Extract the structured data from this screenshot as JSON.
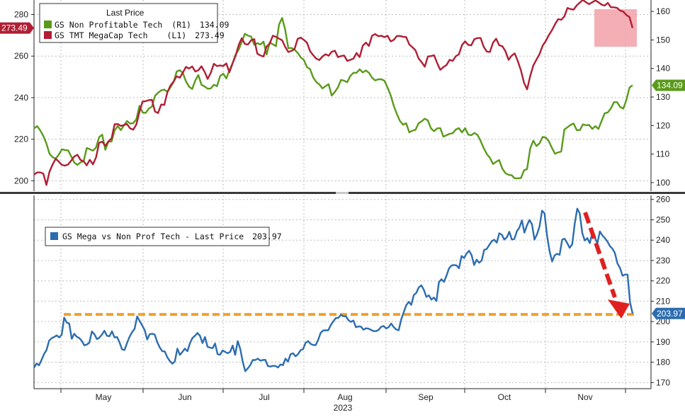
{
  "colors": {
    "green": "#5a9a1b",
    "red": "#b01e34",
    "blue": "#2c6db0",
    "orange": "#f0a030",
    "arrow_red": "#e02020",
    "highlight": "#f2a0a8",
    "grid": "#bdbdbd"
  },
  "chart_data": [
    {
      "type": "line",
      "legend": {
        "title": "Last Price",
        "placement": "top-left",
        "entries": [
          {
            "label": "GS Non Profitable Tech",
            "axis": "(R1)",
            "value": "134.09",
            "color": "#5a9a1b"
          },
          {
            "label": "GS TMT MegaCap Tech",
            "axis": "(L1)",
            "value": "273.49",
            "color": "#b01e34"
          }
        ]
      },
      "left_axis": {
        "ylim": [
          195,
          287
        ],
        "ticks": [
          "200",
          "220",
          "240",
          "260",
          "280"
        ],
        "last_tag": "273.49"
      },
      "right_axis": {
        "ylim": [
          97,
          164
        ],
        "ticks": [
          "100",
          "110",
          "120",
          "130",
          "140",
          "150",
          "160"
        ],
        "last_tag": "134.09"
      },
      "series": [
        {
          "name": "GS Non Profitable Tech",
          "axis": "right",
          "color": "#5a9a1b",
          "values": [
            119,
            119.8,
            118.3,
            116.4,
            113.7,
            110.1,
            108.9,
            108.4,
            109.8,
            111.7,
            111.4,
            111.3,
            109.2,
            107,
            106.2,
            107.1,
            107.5,
            112.1,
            111.7,
            111.2,
            112.3,
            115.9,
            116.8,
            111.5,
            114.4,
            114.4,
            118.3,
            119.8,
            118.4,
            120.1,
            121.6,
            120.7,
            120.8,
            122.2,
            126.9,
            124.6,
            124.4,
            125.9,
            126.6,
            130.4,
            131.5,
            132.3,
            132.6,
            131.8,
            133.4,
            135.2,
            138.9,
            139.4,
            138.4,
            135.5,
            133.6,
            132.8,
            135.8,
            137.7,
            134.3,
            133.7,
            132.9,
            133,
            134.3,
            133.8,
            137.3,
            138.2,
            136.5,
            139.3,
            141.7,
            144.9,
            146.6,
            149.3,
            152.2,
            151.5,
            151.2,
            148.3,
            148.9,
            148.4,
            149.4,
            144.9,
            149.1,
            148.5,
            147.8,
            155.4,
            157.7,
            153.6,
            147.1,
            147.2,
            146.6,
            145.5,
            143.9,
            143,
            140.5,
            139.8,
            136.9,
            135.3,
            134.4,
            133,
            133.8,
            134.5,
            130.5,
            131.8,
            133.4,
            136,
            135.7,
            135.2,
            137.4,
            138.5,
            138.5,
            139.7,
            138.6,
            139.3,
            138.5,
            136.8,
            135.8,
            136.2,
            136.2,
            135.7,
            133.3,
            130.6,
            126.9,
            124,
            121.6,
            120.3,
            120.8,
            117.6,
            118.2,
            118.5,
            120.8,
            121.5,
            122.4,
            121.8,
            119,
            118,
            119,
            119.1,
            116.1,
            116.6,
            117.1,
            117.3,
            118.6,
            119.1,
            117.6,
            119.1,
            116.8,
            116.6,
            117.4,
            116.7,
            114.6,
            112.1,
            110,
            108.7,
            106.5,
            107.3,
            107.9,
            104.9,
            103.3,
            102.7,
            102.6,
            101.5,
            101.5,
            101.6,
            104.3,
            104.8,
            112,
            114.7,
            112.8,
            113.8,
            116,
            115.8,
            114.5,
            112.1,
            110.1,
            110.6,
            110.9,
            118.6,
            119.4,
            120.2,
            120.7,
            118.4,
            118.4,
            120.4,
            120.1,
            120.2,
            118.8,
            119.8,
            118.8,
            121.6,
            124.3,
            124.6,
            126,
            128.2,
            128.2,
            126.5,
            125.9,
            128.9,
            133.3,
            134.09
          ]
        },
        {
          "name": "GS TMT MegaCap Tech",
          "axis": "left",
          "color": "#b01e34",
          "values": [
            203,
            204,
            204,
            203.5,
            198,
            204.4,
            207.8,
            210.6,
            209.2,
            207.6,
            207.3,
            207.8,
            209.7,
            211.7,
            212.5,
            210,
            209.4,
            207.4,
            210.1,
            207.9,
            211.3,
            218.3,
            218.8,
            216.8,
            219,
            220.4,
            227.2,
            227.3,
            226.4,
            226.8,
            227.3,
            225.2,
            224.6,
            227.1,
            233.2,
            238.1,
            238.3,
            238.8,
            239,
            233.3,
            232.6,
            236.7,
            236.5,
            242.6,
            245.8,
            247.7,
            250.3,
            249.6,
            252.1,
            254.8,
            254,
            255,
            252.6,
            253.2,
            255.1,
            252.5,
            249,
            252,
            256.3,
            255.2,
            255.5,
            255.2,
            256.5,
            252.2,
            256.4,
            260.2,
            265.4,
            268.6,
            265.8,
            265.6,
            267.6,
            268.2,
            261.2,
            260.3,
            259.8,
            264.6,
            265.9,
            269.8,
            269.3,
            268.4,
            267.6,
            264.4,
            262,
            262.5,
            263.4,
            268.3,
            268.9,
            267.8,
            266.5,
            262.4,
            260.5,
            258.8,
            258.1,
            259.8,
            260.9,
            260.2,
            262.1,
            262.6,
            259.5,
            260,
            260.3,
            257.7,
            258.2,
            258.8,
            261.5,
            259.5,
            265,
            266.5,
            264.9,
            269.8,
            270.6,
            269.6,
            269.8,
            269.1,
            269.8,
            267.1,
            267.8,
            269.7,
            269.7,
            269.3,
            269.1,
            265.6,
            264.3,
            262.8,
            258.9,
            257,
            254.9,
            259.8,
            260,
            260.4,
            256.6,
            253.4,
            254.7,
            255.7,
            258.2,
            257.7,
            259.9,
            260.9,
            265.3,
            267.1,
            265.4,
            265.2,
            268.2,
            268.7,
            268.7,
            264.5,
            262.2,
            262,
            266.5,
            268.4,
            265.2,
            264.8,
            262.4,
            258.2,
            260.2,
            261.3,
            257.6,
            253.1,
            247.1,
            244,
            250.4,
            255.5,
            258.3,
            261,
            265,
            267.2,
            270.1,
            272.5,
            275.3,
            277.8,
            277.5,
            279.1,
            283.2,
            282.6,
            282.4,
            284.4,
            285.8,
            287,
            285.9,
            285,
            285.9,
            286.8,
            285.9,
            284.8,
            284.3,
            285.6,
            283.5,
            283.5,
            283.2,
            281.9,
            281.4,
            279.8,
            278.8,
            273.49
          ]
        }
      ]
    },
    {
      "type": "line",
      "legend": {
        "placement": "top-left",
        "entries": [
          {
            "label": "GS Mega vs Non Prof Tech - Last Price",
            "value": "203.97",
            "color": "#2c6db0"
          }
        ]
      },
      "x_axis": {
        "ticks": [
          "May",
          "Jun",
          "Jul",
          "Aug",
          "Sep",
          "Oct",
          "Nov"
        ],
        "year_label": "2023"
      },
      "right_axis": {
        "ylim": [
          167,
          262
        ],
        "ticks": [
          "170",
          "180",
          "190",
          "200",
          "210",
          "220",
          "230",
          "240",
          "250",
          "260"
        ],
        "last_tag": "203.97"
      },
      "reference_level": 203.5,
      "series": [
        {
          "name": "GS Mega vs Non Prof Tech",
          "axis": "right",
          "color": "#2c6db0",
          "values": [
            177.3,
            179.4,
            178.5,
            181.2,
            184,
            186.1,
            190.6,
            191.8,
            192.4,
            193.2,
            192.2,
            193.5,
            201.9,
            199.5,
            199,
            191.5,
            194,
            192.5,
            191.9,
            190.5,
            188.3,
            188.7,
            189.6,
            195.1,
            193.8,
            191.4,
            192.1,
            193.6,
            195.5,
            193,
            192.8,
            195.2,
            192.2,
            192.4,
            189.8,
            186.3,
            186,
            189.5,
            192.5,
            194.8,
            196.4,
            202.5,
            200.3,
            198.1,
            195.8,
            191.2,
            193.8,
            194,
            193.6,
            189.9,
            187.3,
            185.4,
            185.3,
            182.4,
            180.6,
            179.3,
            180.4,
            186.7,
            183.6,
            185.1,
            186.7,
            185.4,
            189.3,
            191.9,
            193,
            194.4,
            193,
            189.4,
            192.4,
            187.6,
            187.2,
            186.9,
            189.2,
            183.9,
            183.7,
            185.8,
            185.1,
            184.4,
            185.1,
            188.2,
            183.6,
            190.4,
            186.6,
            180.2,
            175.6,
            177,
            178.6,
            181.1,
            181.1,
            181.8,
            180.8,
            181.1,
            181.2,
            178.1,
            177.9,
            178.2,
            178.2,
            177.4,
            178.9,
            178.6,
            181.8,
            180.3,
            183.9,
            184.4,
            182.9,
            184,
            185.9,
            186.5,
            189.6,
            190.4,
            189,
            188.5,
            188.4,
            191,
            194.5,
            195.6,
            195.7,
            195.7,
            198.2,
            200.1,
            201.7,
            201.8,
            203.3,
            202.6,
            202.6,
            200.7,
            199.8,
            200.5,
            197.2,
            197.6,
            197.5,
            196,
            196.7,
            196.5,
            195.9,
            195.3,
            195.3,
            195.9,
            197.4,
            197.8,
            196.6,
            197.2,
            199,
            197.3,
            196.1,
            195.7,
            201,
            204.6,
            208,
            209.7,
            208.2,
            213,
            214.1,
            216.8,
            217.8,
            215.6,
            212.1,
            212.9,
            210.8,
            211.8,
            210.1,
            219.3,
            220.8,
            219.5,
            222.5,
            226.1,
            227.5,
            227.8,
            227.6,
            226.2,
            232.2,
            231.2,
            233.5,
            234.8,
            232.6,
            227.8,
            230.4,
            228.9,
            230,
            235.2,
            235.7,
            237.6,
            239.5,
            240.2,
            238.8,
            243.4,
            242.7,
            240.3,
            241.4,
            244.1,
            240.3,
            240.6,
            244.4,
            246.2,
            249.7,
            243.7,
            247.3,
            249.9,
            247.8,
            240.3,
            242.9,
            246.7,
            254.5,
            253.2,
            242.2,
            234.6,
            229.5,
            232.5,
            233.3,
            232.8,
            240.3,
            240.7,
            238.6,
            236.2,
            238,
            248,
            255.5,
            253.2,
            243.5,
            239.8,
            241,
            238.5,
            243.6,
            241.3,
            238.4,
            244.3,
            242.3,
            241,
            239.3,
            237.1,
            235.8,
            233.6,
            228.5,
            226.4,
            222.5,
            223.1,
            223.1,
            209.5,
            203.97
          ]
        }
      ]
    }
  ]
}
